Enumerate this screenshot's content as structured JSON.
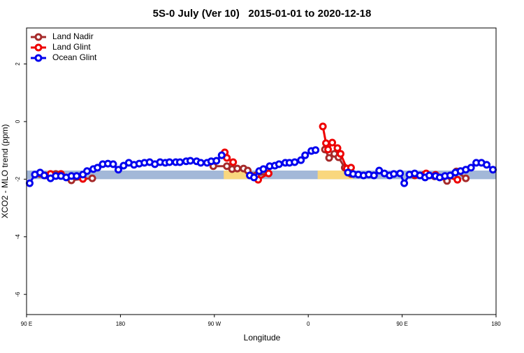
{
  "chart_data": {
    "type": "line",
    "title": "5S-0 July (Ver 10)   2015-01-01 to 2020-12-18",
    "x_label": "Longitude",
    "y_label": "XCO2 - MLO trend (ppm)",
    "xlim": [
      90,
      540
    ],
    "ylim": [
      -6.7,
      3.25
    ],
    "xticks": [
      {
        "value": 90,
        "label": "90 E"
      },
      180,
      {
        "value": 270,
        "label": "90 W"
      },
      {
        "value": 360,
        "label": "0"
      },
      {
        "value": 450,
        "label": "90 E"
      },
      {
        "value": 540,
        "label": "180"
      }
    ],
    "yticks": [
      -6,
      -4,
      -2,
      0,
      2
    ],
    "legend": "top-left",
    "band": {
      "ylim": [
        -2.0,
        -1.7
      ],
      "color": "#a3b8d8"
    },
    "highlights": [
      {
        "xlim": [
          279,
          306
        ],
        "color": "#f9d77e"
      },
      {
        "xlim": [
          369,
          403
        ],
        "color": "#f9d77e"
      }
    ],
    "series": [
      {
        "name": "Land Nadir",
        "color": "#a52a2a",
        "x": [
          103,
          108,
          118,
          133,
          144,
          153,
          null,
          269,
          282,
          287,
          292,
          298,
          302,
          310,
          322,
          null,
          376,
          380,
          385,
          389,
          395,
          401,
          null,
          462,
          471,
          481,
          493,
          502,
          511
        ],
        "values": [
          -1.82,
          -1.87,
          -1.82,
          -2.04,
          -1.99,
          -1.97,
          null,
          -1.55,
          -1.55,
          -1.65,
          -1.63,
          -1.63,
          -1.7,
          -1.87,
          -1.8,
          null,
          -0.97,
          -1.26,
          -1.12,
          -1.24,
          -1.6,
          -1.82,
          null,
          -1.87,
          -1.85,
          -1.9,
          -2.06,
          -1.73,
          -1.97
        ]
      },
      {
        "name": "Land Glint",
        "color": "#ee0000",
        "x": [
          113,
          123,
          144,
          null,
          280,
          282,
          288,
          null,
          312,
          322,
          null,
          374,
          377,
          379,
          383,
          388,
          391,
          397,
          401,
          null,
          463,
          473,
          482,
          503
        ],
        "values": [
          -1.82,
          -1.82,
          -1.99,
          null,
          -1.07,
          -1.26,
          -1.41,
          null,
          -2.02,
          -1.8,
          null,
          -0.17,
          -0.75,
          -0.97,
          -0.73,
          -0.92,
          -1.12,
          -1.63,
          -1.6,
          null,
          -1.85,
          -1.8,
          -1.85,
          -2.02
        ]
      },
      {
        "name": "Ocean Glint",
        "color": "#0000ee",
        "x": [
          93,
          98,
          103,
          107,
          113,
          118,
          123,
          128,
          133,
          138,
          144,
          148,
          154,
          158,
          163,
          168,
          173,
          178,
          183,
          188,
          193,
          198,
          203,
          208,
          213,
          218,
          223,
          227,
          233,
          237,
          243,
          247,
          253,
          257,
          263,
          267,
          272,
          277,
          null,
          304,
          308,
          313,
          317,
          323,
          328,
          332,
          338,
          342,
          347,
          353,
          357,
          363,
          367,
          null,
          398,
          403,
          408,
          413,
          418,
          423,
          428,
          433,
          438,
          442,
          448,
          452,
          457,
          462,
          467,
          472,
          476,
          482,
          486,
          491,
          496,
          501,
          506,
          511,
          516,
          521,
          526,
          531,
          537
        ],
        "values": [
          -2.14,
          -1.84,
          -1.77,
          -1.87,
          -1.97,
          -1.89,
          -1.89,
          -1.94,
          -1.89,
          -1.89,
          -1.84,
          -1.72,
          -1.65,
          -1.6,
          -1.48,
          -1.46,
          -1.48,
          -1.67,
          -1.53,
          -1.43,
          -1.5,
          -1.46,
          -1.43,
          -1.41,
          -1.48,
          -1.41,
          -1.43,
          -1.41,
          -1.41,
          -1.41,
          -1.38,
          -1.36,
          -1.38,
          -1.43,
          -1.43,
          -1.38,
          -1.36,
          -1.17,
          null,
          -1.87,
          -1.94,
          -1.72,
          -1.65,
          -1.55,
          -1.53,
          -1.48,
          -1.43,
          -1.43,
          -1.41,
          -1.34,
          -1.17,
          -1.02,
          -0.99,
          null,
          -1.77,
          -1.82,
          -1.84,
          -1.87,
          -1.84,
          -1.87,
          -1.7,
          -1.8,
          -1.87,
          -1.82,
          -1.8,
          -2.14,
          -1.84,
          -1.8,
          -1.87,
          -1.94,
          -1.87,
          -1.89,
          -1.94,
          -1.89,
          -1.87,
          -1.77,
          -1.72,
          -1.67,
          -1.6,
          -1.43,
          -1.43,
          -1.5,
          -1.67
        ]
      }
    ]
  }
}
